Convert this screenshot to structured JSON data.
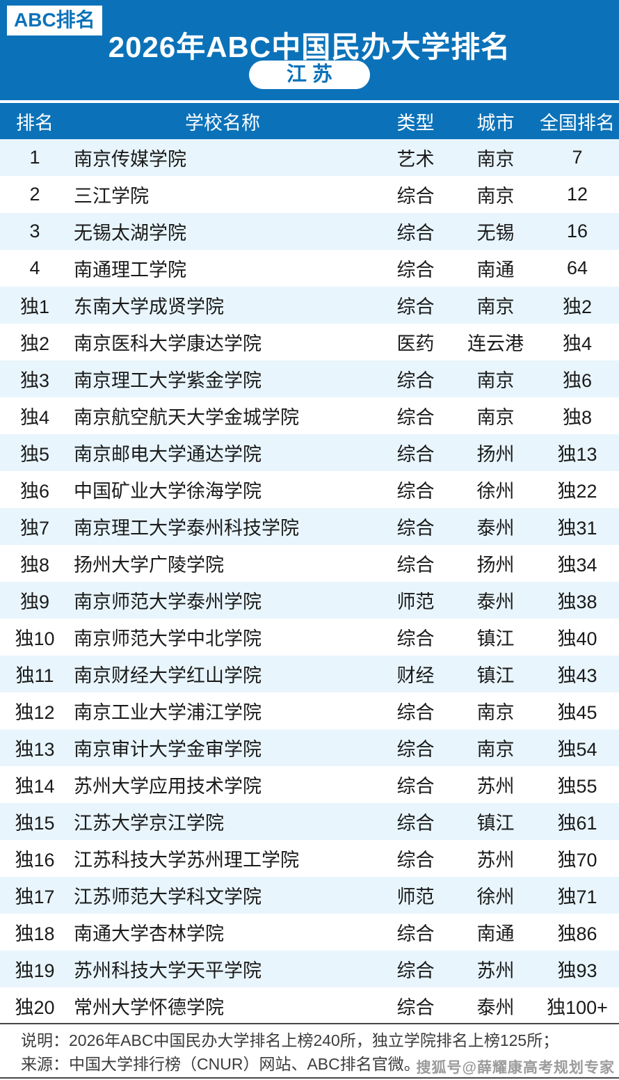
{
  "brand": {
    "badge_label": "ABC排名"
  },
  "chart_data": {
    "type": "table",
    "title": "2026年ABC中国民办大学排名",
    "region": "江 苏",
    "columns": [
      "排名",
      "学校名称",
      "类型",
      "城市",
      "全国排名"
    ],
    "rows": [
      [
        "1",
        "南京传媒学院",
        "艺术",
        "南京",
        "7"
      ],
      [
        "2",
        "三江学院",
        "综合",
        "南京",
        "12"
      ],
      [
        "3",
        "无锡太湖学院",
        "综合",
        "无锡",
        "16"
      ],
      [
        "4",
        "南通理工学院",
        "综合",
        "南通",
        "64"
      ],
      [
        "独1",
        "东南大学成贤学院",
        "综合",
        "南京",
        "独2"
      ],
      [
        "独2",
        "南京医科大学康达学院",
        "医药",
        "连云港",
        "独4"
      ],
      [
        "独3",
        "南京理工大学紫金学院",
        "综合",
        "南京",
        "独6"
      ],
      [
        "独4",
        "南京航空航天大学金城学院",
        "综合",
        "南京",
        "独8"
      ],
      [
        "独5",
        "南京邮电大学通达学院",
        "综合",
        "扬州",
        "独13"
      ],
      [
        "独6",
        "中国矿业大学徐海学院",
        "综合",
        "徐州",
        "独22"
      ],
      [
        "独7",
        "南京理工大学泰州科技学院",
        "综合",
        "泰州",
        "独31"
      ],
      [
        "独8",
        "扬州大学广陵学院",
        "综合",
        "扬州",
        "独34"
      ],
      [
        "独9",
        "南京师范大学泰州学院",
        "师范",
        "泰州",
        "独38"
      ],
      [
        "独10",
        "南京师范大学中北学院",
        "综合",
        "镇江",
        "独40"
      ],
      [
        "独11",
        "南京财经大学红山学院",
        "财经",
        "镇江",
        "独43"
      ],
      [
        "独12",
        "南京工业大学浦江学院",
        "综合",
        "南京",
        "独45"
      ],
      [
        "独13",
        "南京审计大学金审学院",
        "综合",
        "南京",
        "独54"
      ],
      [
        "独14",
        "苏州大学应用技术学院",
        "综合",
        "苏州",
        "独55"
      ],
      [
        "独15",
        "江苏大学京江学院",
        "综合",
        "镇江",
        "独61"
      ],
      [
        "独16",
        "江苏科技大学苏州理工学院",
        "综合",
        "苏州",
        "独70"
      ],
      [
        "独17",
        "江苏师范大学科文学院",
        "师范",
        "徐州",
        "独71"
      ],
      [
        "独18",
        "南通大学杏林学院",
        "综合",
        "南通",
        "独86"
      ],
      [
        "独19",
        "苏州科技大学天平学院",
        "综合",
        "苏州",
        "独93"
      ],
      [
        "独20",
        "常州大学怀德学院",
        "综合",
        "泰州",
        "独100+"
      ]
    ]
  },
  "footer": {
    "note": "说明：2026年ABC中国民办大学排名上榜240所，独立学院排名上榜125所；",
    "source": "来源：中国大学排行榜（CNUR）网站、ABC排名官微。",
    "watermark": "搜狐号@薛耀康高考规划专家"
  },
  "colors": {
    "primary_blue": "#0b72b9",
    "row_alt_blue": "#e8f5fc",
    "text_dark": "#1a1a1a",
    "footer_text": "#3c3c3c",
    "footer_line": "#474747",
    "watermark_gray": "#9b9b9b"
  }
}
